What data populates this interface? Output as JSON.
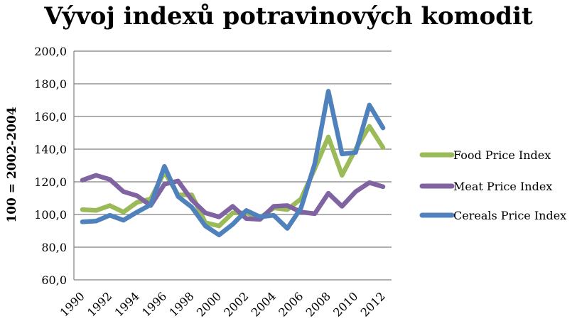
{
  "chart_data": {
    "type": "line",
    "title": "Vývoj indexů potravinových komodit",
    "xlabel": "",
    "ylabel": "100 = 2002-2004",
    "ylim": [
      60,
      200
    ],
    "yticks": [
      "60,0",
      "80,0",
      "100,0",
      "120,0",
      "140,0",
      "160,0",
      "180,0",
      "200,0"
    ],
    "x": [
      1990,
      1991,
      1992,
      1993,
      1994,
      1995,
      1996,
      1997,
      1998,
      1999,
      2000,
      2001,
      2002,
      2003,
      2004,
      2005,
      2006,
      2007,
      2008,
      2009,
      2010,
      2011,
      2012
    ],
    "xtick_labels": [
      "1990",
      "1992",
      "1994",
      "1996",
      "1998",
      "2000",
      "2002",
      "2004",
      "2006",
      "2008",
      "2010",
      "2012"
    ],
    "grid": true,
    "legend_position": "right",
    "series": [
      {
        "name": "Food Price Index",
        "color": "#9BBB59",
        "values": [
          103,
          102.5,
          105.5,
          101.5,
          107.5,
          109.5,
          126,
          112,
          112,
          95,
          93,
          101,
          101,
          98,
          104,
          103,
          109.5,
          128,
          147.5,
          124,
          140,
          154,
          141
        ]
      },
      {
        "name": "Meat Price Index",
        "color": "#8064A2",
        "values": [
          121,
          124,
          121.5,
          114,
          111.5,
          105.5,
          118.5,
          120.5,
          109,
          101,
          98.5,
          105,
          97.5,
          97,
          105,
          105.5,
          101.5,
          100.5,
          113,
          105,
          114,
          119.5,
          117
        ]
      },
      {
        "name": "Cereals Price Index",
        "color": "#4F81BD",
        "values": [
          95.5,
          96,
          99.5,
          96.5,
          101.5,
          106,
          129.5,
          111,
          104.5,
          93,
          87.5,
          94,
          102.5,
          98.5,
          99.5,
          91.5,
          104,
          131,
          175.5,
          137,
          138,
          167,
          153
        ]
      }
    ]
  }
}
